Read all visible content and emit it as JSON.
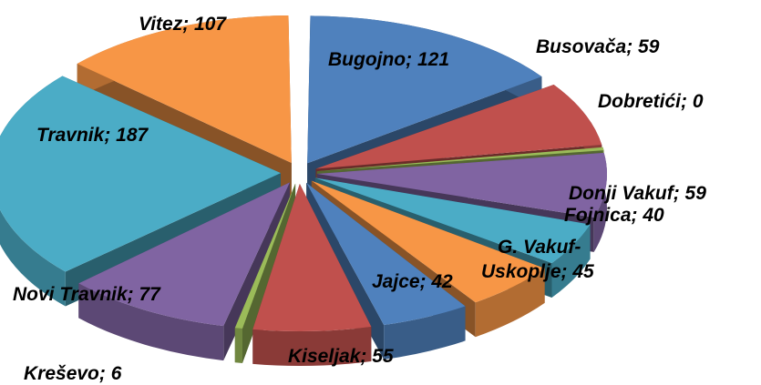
{
  "chart_data": {
    "type": "pie",
    "variant": "3d-exploded",
    "title": "",
    "start_angle_deg": 90,
    "direction": "clockwise",
    "data_label_separator": "; ",
    "slices": [
      {
        "label": "Bugojno",
        "value": 121,
        "color": "#4F81BD"
      },
      {
        "label": "Busovača",
        "value": 59,
        "color": "#C0504D"
      },
      {
        "label": "Dobretići",
        "value": 0,
        "color": "#9BBB59"
      },
      {
        "label": "Donji Vakuf",
        "value": 59,
        "color": "#8064A2"
      },
      {
        "label": "Fojnica",
        "value": 40,
        "color": "#4BACC6"
      },
      {
        "label": "G. Vakuf-Uskoplje",
        "label_lines": [
          "G. Vakuf-",
          "Uskoplje; 45"
        ],
        "value": 45,
        "color": "#F79646"
      },
      {
        "label": "Jajce",
        "value": 42,
        "color": "#4F81BD"
      },
      {
        "label": "Kiseljak",
        "value": 55,
        "color": "#C0504D"
      },
      {
        "label": "Kreševo",
        "value": 6,
        "color": "#9BBB59"
      },
      {
        "label": "Novi Travnik",
        "value": 77,
        "color": "#8064A2"
      },
      {
        "label": "Travnik",
        "value": 187,
        "color": "#4BACC6"
      },
      {
        "label": "Vitez",
        "value": 107,
        "color": "#F79646"
      }
    ]
  }
}
